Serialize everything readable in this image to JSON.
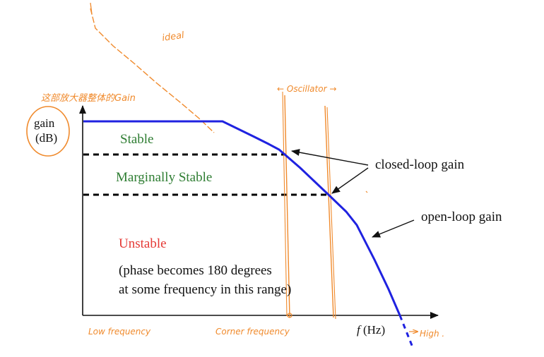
{
  "colors": {
    "axis": "#111111",
    "curve": "#1f22e0",
    "dashed": "#000000",
    "stable": "#2e7d32",
    "unstable": "#e53935",
    "annotation": "#f08a2c",
    "text": "#111111"
  },
  "axis": {
    "y_label_line1": "gain",
    "y_label_line2": "(dB)",
    "x_label_italic": "f",
    "x_label_rest": " (Hz)"
  },
  "regions": {
    "stable": "Stable",
    "marginally_stable": "Marginally Stable",
    "unstable": "Unstable",
    "note_line1": "(phase becomes 180 degrees",
    "note_line2": "at some frequency in this range)"
  },
  "labels": {
    "closed_loop_gain": "closed-loop gain",
    "open_loop_gain": "open-loop gain"
  },
  "handwritten": {
    "ideal": "ideal",
    "chinese_note": "这部放大器整体的Gain",
    "oscillator": "← Oscillator →",
    "low_frequency": "Low frequency",
    "corner_frequency": "Corner frequency",
    "high": "High ."
  }
}
